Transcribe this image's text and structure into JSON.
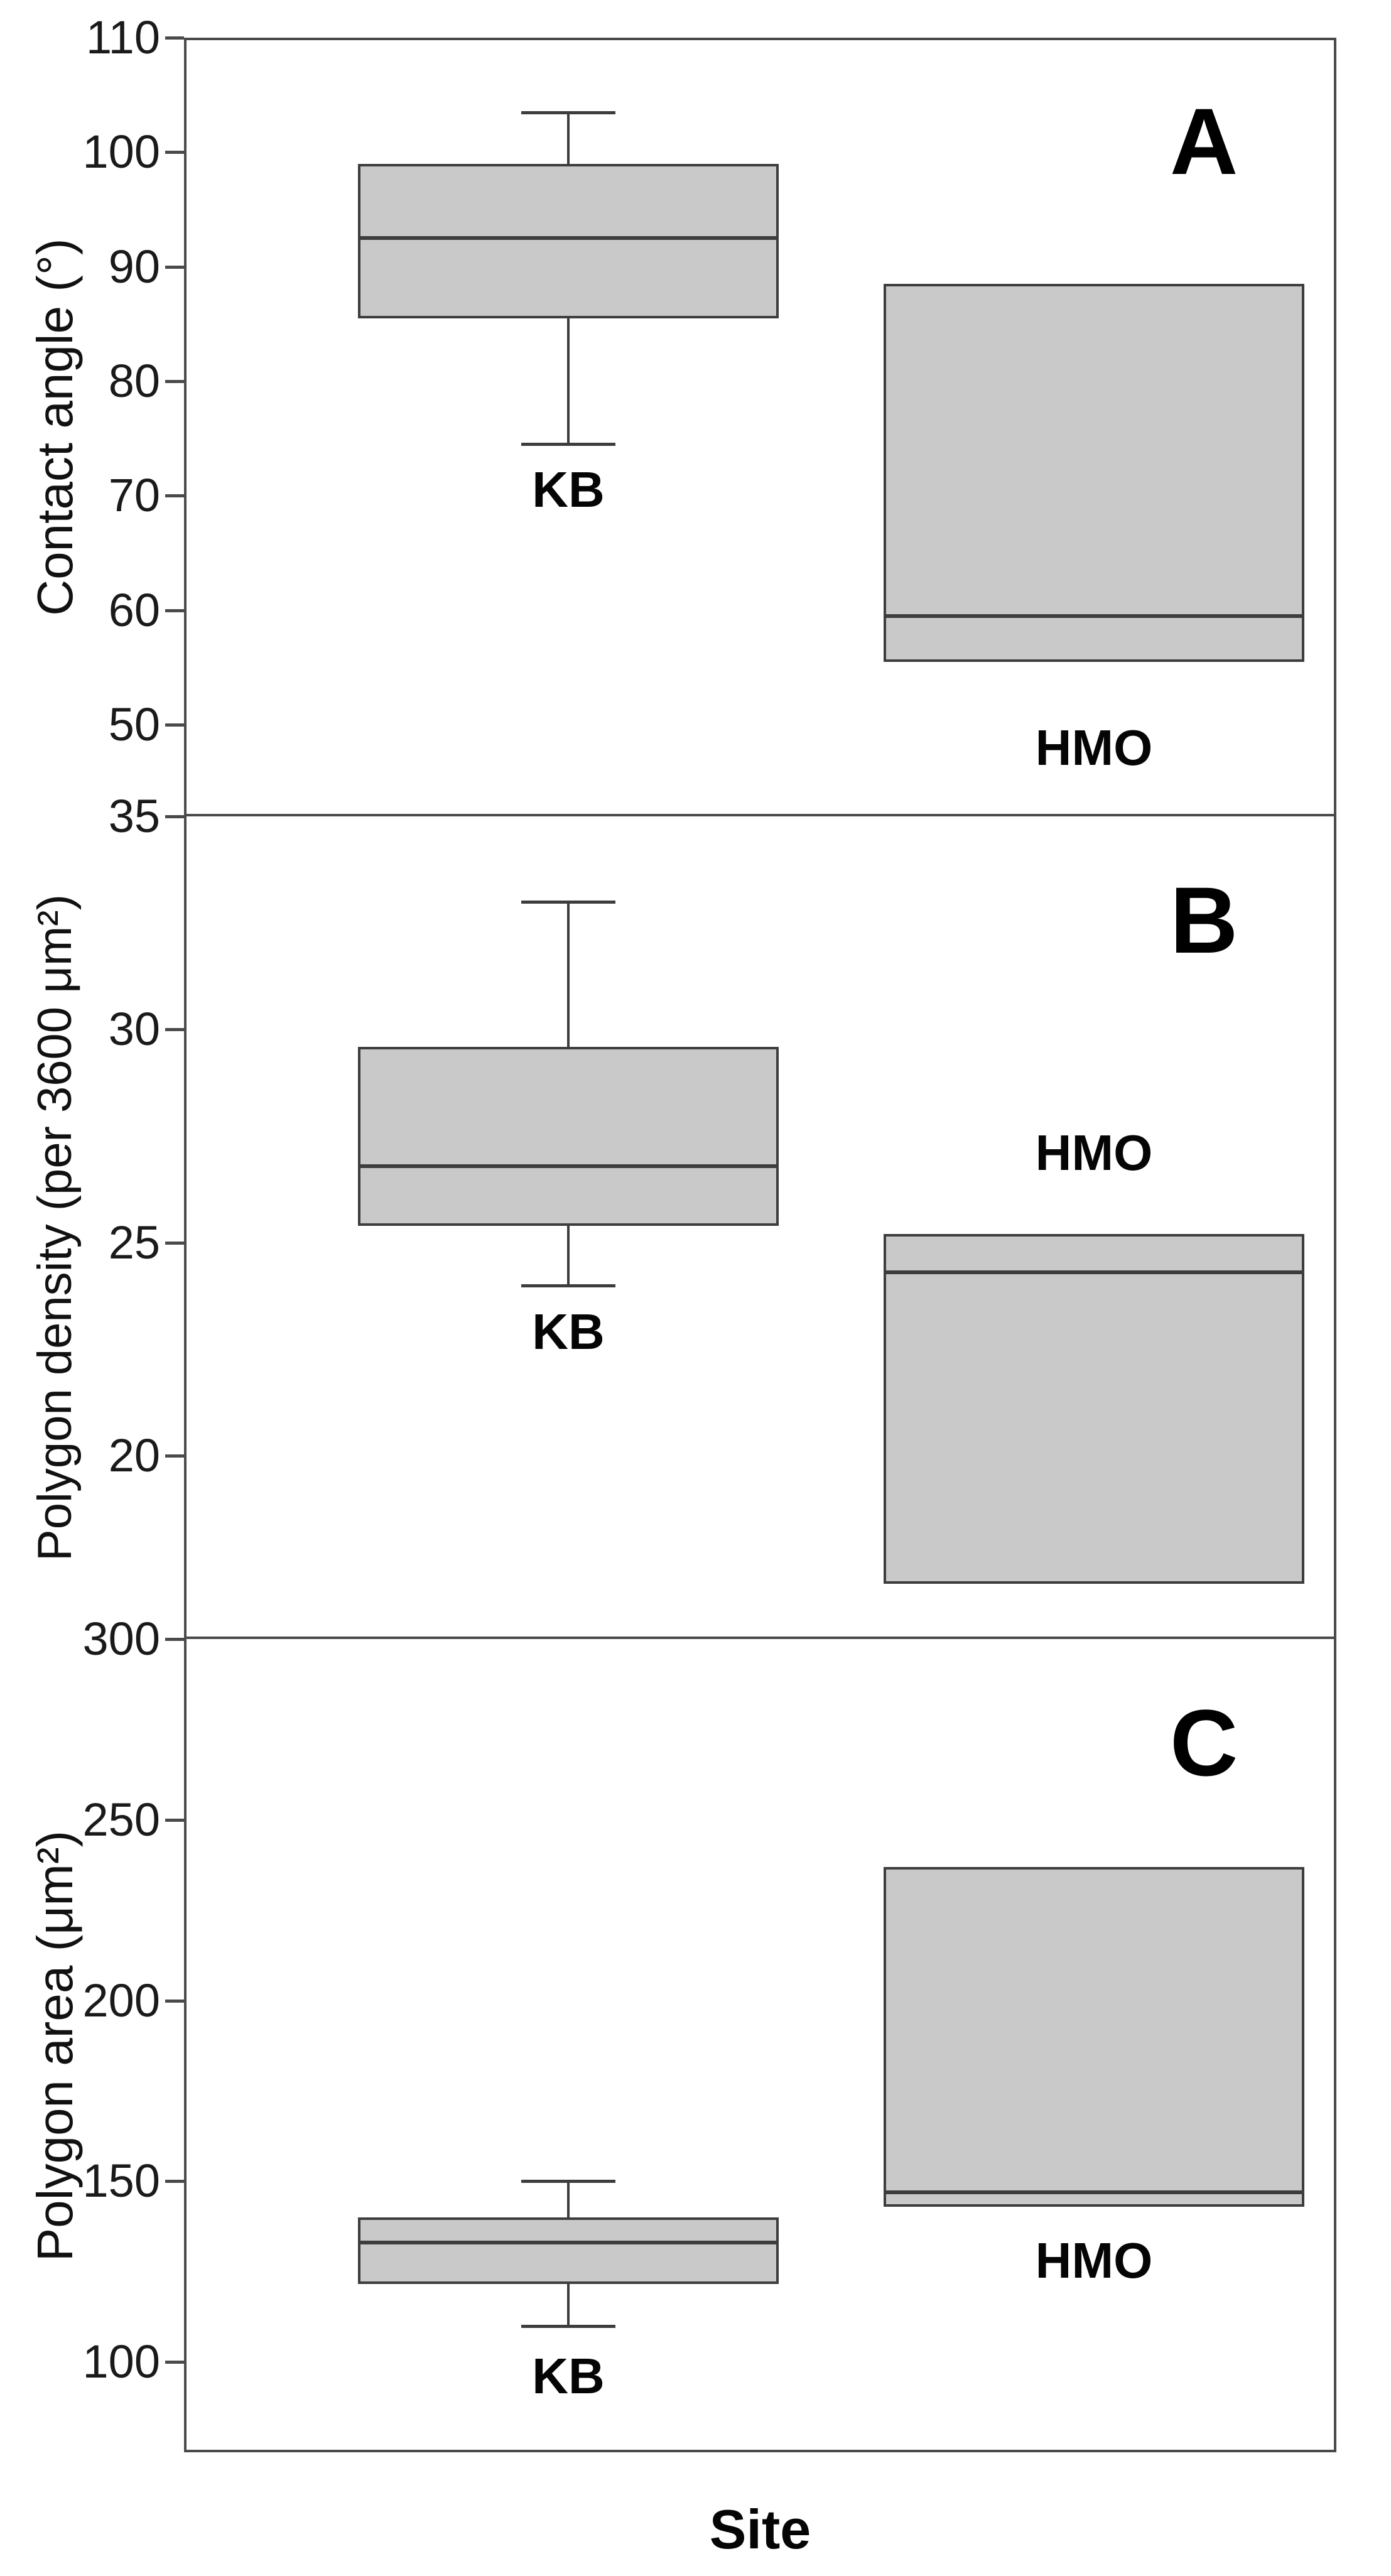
{
  "figure": {
    "x_axis_label": "Site",
    "background_color": "#ffffff",
    "box_fill_color": "#c9c9c9",
    "box_stroke_color": "#3d3d3d",
    "frame_color": "#4a4a4a",
    "text_color": "#000000"
  },
  "chart_data": [
    {
      "type": "box",
      "panel_label": "A",
      "ylabel": "Contact angle (°)",
      "xlabel": "Site",
      "yticks": [
        110,
        100,
        90,
        80,
        70,
        60,
        50
      ],
      "ylim": [
        42,
        110
      ],
      "grid": false,
      "legend": "none",
      "categories": [
        "KB",
        "HMO"
      ],
      "series": [
        {
          "name": "KB",
          "whisker_low": 74.5,
          "q1": 85.5,
          "median": 92.5,
          "q3": 99,
          "whisker_high": 103.5,
          "name_label_at": 70.5,
          "label_side": "below"
        },
        {
          "name": "HMO",
          "whisker_low": null,
          "q1": 55.5,
          "median": 59.5,
          "q3": 88.5,
          "whisker_high": null,
          "name_label_at": 48,
          "label_side": "below"
        }
      ]
    },
    {
      "type": "box",
      "panel_label": "B",
      "ylabel": "Polygon density (per 3600 μm²)",
      "xlabel": "Site",
      "yticks": [
        35,
        30,
        25,
        20
      ],
      "ylim": [
        15.7,
        35
      ],
      "grid": false,
      "legend": "none",
      "categories": [
        "KB",
        "HMO"
      ],
      "series": [
        {
          "name": "KB",
          "whisker_low": 24,
          "q1": 25.4,
          "median": 26.8,
          "q3": 29.6,
          "whisker_high": 33,
          "name_label_at": 22.9,
          "label_side": "below"
        },
        {
          "name": "HMO",
          "whisker_low": null,
          "q1": 17,
          "median": 24.3,
          "q3": 25.2,
          "whisker_high": null,
          "name_label_at": 27.1,
          "label_side": "above"
        }
      ]
    },
    {
      "type": "box",
      "panel_label": "C",
      "ylabel": "Polygon area (μm²)",
      "xlabel": "Site",
      "yticks": [
        300,
        250,
        200,
        150,
        100
      ],
      "ylim": [
        75,
        300
      ],
      "grid": false,
      "legend": "none",
      "categories": [
        "KB",
        "HMO"
      ],
      "series": [
        {
          "name": "KB",
          "whisker_low": 110,
          "q1": 121.5,
          "median": 133,
          "q3": 140,
          "whisker_high": 150,
          "name_label_at": 96,
          "label_side": "below"
        },
        {
          "name": "HMO",
          "whisker_low": null,
          "q1": 143,
          "median": 147,
          "q3": 237,
          "whisker_high": null,
          "name_label_at": 128,
          "label_side": "below"
        }
      ]
    }
  ]
}
